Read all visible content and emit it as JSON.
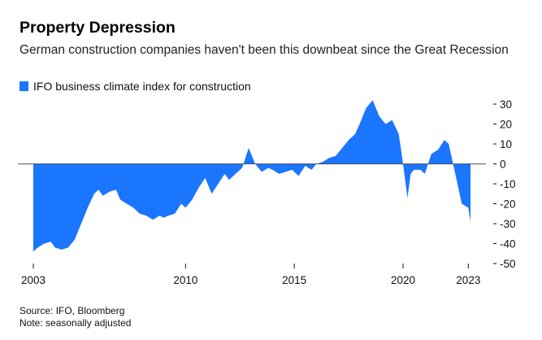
{
  "chart_data": {
    "type": "area",
    "title": "Property Depression",
    "subtitle": "German construction companies haven't been this downbeat since the Great Recession",
    "legend": [
      "IFO business climate index for construction"
    ],
    "source": "Source: IFO, Bloomberg",
    "note": "Note: seasonally adjusted",
    "colors": {
      "series": "#1a75ff",
      "zero_line": "#555555",
      "tick": "#111111"
    },
    "xlabel": "",
    "ylabel": "",
    "xlim": [
      2003.0,
      2023.1
    ],
    "ylim": [
      -50,
      30
    ],
    "x_ticks": [
      2003,
      2010,
      2015,
      2020,
      2023
    ],
    "y_ticks": [
      30,
      20,
      10,
      0,
      -10,
      -20,
      -30,
      -40,
      -50
    ],
    "y_tick_labels": [
      "30",
      "20",
      "10",
      "0",
      "-10",
      "-20",
      "-30",
      "-40",
      "-50"
    ],
    "grid": false,
    "legend_position": "top-left",
    "series": [
      {
        "name": "IFO business climate index for construction",
        "x": [
          2003.0,
          2003.2,
          2003.5,
          2003.8,
          2004.0,
          2004.3,
          2004.6,
          2004.9,
          2005.2,
          2005.5,
          2005.8,
          2006.0,
          2006.2,
          2006.5,
          2006.8,
          2007.0,
          2007.3,
          2007.6,
          2007.9,
          2008.2,
          2008.5,
          2008.8,
          2009.0,
          2009.2,
          2009.5,
          2009.8,
          2010.0,
          2010.3,
          2010.6,
          2010.9,
          2011.2,
          2011.5,
          2011.8,
          2012.0,
          2012.3,
          2012.6,
          2012.9,
          2013.2,
          2013.5,
          2013.8,
          2014.0,
          2014.3,
          2014.6,
          2014.9,
          2015.2,
          2015.5,
          2015.8,
          2016.0,
          2016.3,
          2016.6,
          2016.9,
          2017.2,
          2017.5,
          2017.8,
          2018.0,
          2018.3,
          2018.6,
          2018.9,
          2019.2,
          2019.5,
          2019.8,
          2020.0,
          2020.2,
          2020.35,
          2020.5,
          2020.8,
          2021.0,
          2021.3,
          2021.6,
          2021.9,
          2022.1,
          2022.4,
          2022.7,
          2023.0,
          2023.1
        ],
        "values": [
          -44,
          -42,
          -40,
          -39,
          -42,
          -43,
          -42,
          -38,
          -30,
          -22,
          -15,
          -13,
          -16,
          -14,
          -13,
          -18,
          -20,
          -22,
          -25,
          -26,
          -28,
          -26,
          -27,
          -26,
          -25,
          -20,
          -22,
          -18,
          -12,
          -7,
          -15,
          -10,
          -5,
          -8,
          -5,
          -2,
          8,
          0,
          -4,
          -2,
          -3,
          -5,
          -4,
          -3,
          -6,
          -1,
          -3,
          0,
          1,
          3,
          4,
          8,
          12,
          15,
          20,
          28,
          32,
          24,
          20,
          22,
          15,
          0,
          -17,
          -5,
          -3,
          -3,
          -5,
          5,
          7,
          12,
          10,
          -5,
          -20,
          -22,
          -29
        ]
      }
    ]
  }
}
